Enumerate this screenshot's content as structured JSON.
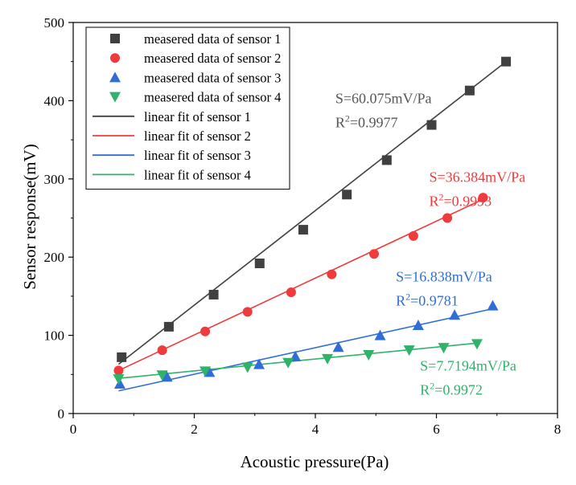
{
  "chart_data": {
    "type": "scatter",
    "title": "",
    "xlabel": "Acoustic pressure(Pa)",
    "ylabel": "Sensor response(mV)",
    "xlim": [
      0,
      8
    ],
    "ylim": [
      0,
      500
    ],
    "xticks": [
      0,
      2,
      4,
      6,
      8
    ],
    "yticks": [
      0,
      100,
      200,
      300,
      400,
      500
    ],
    "grid": false,
    "legend_position": "top-left",
    "series": [
      {
        "name": "measered data of sensor 1",
        "marker": "square",
        "color": "#404040",
        "x": [
          0.8,
          1.58,
          2.32,
          3.08,
          3.8,
          4.52,
          5.18,
          5.92,
          6.55,
          7.15
        ],
        "y": [
          72,
          111,
          152,
          192,
          235,
          280,
          324,
          369,
          413,
          450
        ]
      },
      {
        "name": "measered data of sensor 2",
        "marker": "circle",
        "color": "#ef3b3b",
        "x": [
          0.75,
          1.47,
          2.18,
          2.88,
          3.6,
          4.27,
          4.97,
          5.62,
          6.18,
          6.77
        ],
        "y": [
          55,
          81,
          105,
          130,
          155,
          178,
          204,
          227,
          250,
          276
        ]
      },
      {
        "name": "measered data of sensor 3",
        "marker": "triangle-up",
        "color": "#2f6ed8",
        "x": [
          0.77,
          1.55,
          2.25,
          3.07,
          3.67,
          4.38,
          5.07,
          5.7,
          6.3,
          6.93
        ],
        "y": [
          38,
          47,
          53,
          63,
          73,
          85,
          100,
          113,
          126,
          138
        ]
      },
      {
        "name": "measered data of sensor 4",
        "marker": "triangle-down",
        "color": "#2fb36b",
        "x": [
          0.75,
          1.47,
          2.18,
          2.88,
          3.55,
          4.2,
          4.88,
          5.55,
          6.12,
          6.67
        ],
        "y": [
          44,
          49,
          54,
          59,
          65,
          70,
          75,
          81,
          84,
          89
        ]
      },
      {
        "name": "linear fit of sensor 1",
        "type": "line",
        "color": "#404040",
        "x": [
          0.75,
          7.15
        ],
        "y": [
          63,
          450
        ]
      },
      {
        "name": "linear fit of sensor 2",
        "type": "line",
        "color": "#ef3b3b",
        "x": [
          0.75,
          6.77
        ],
        "y": [
          55,
          274
        ]
      },
      {
        "name": "linear fit of sensor 3",
        "type": "line",
        "color": "#2f6ed8",
        "x": [
          0.75,
          6.93
        ],
        "y": [
          29,
          134
        ]
      },
      {
        "name": "linear fit of sensor 4",
        "type": "line",
        "color": "#2fb36b",
        "x": [
          0.75,
          6.67
        ],
        "y": [
          45,
          90
        ]
      }
    ],
    "annotations": [
      {
        "slope": "S=60.075mV/Pa",
        "r2_prefix": "R",
        "r2_sup": "2",
        "r2_value": "=0.9977",
        "color": "#555555",
        "x": 4.33,
        "y": 397
      },
      {
        "slope": "S=36.384mV/Pa",
        "r2_prefix": "R",
        "r2_sup": "2",
        "r2_value": "=0.9993",
        "color": "#ef3b3b",
        "x": 5.88,
        "y": 296
      },
      {
        "slope": "S=16.838mV/Pa",
        "r2_prefix": "R",
        "r2_sup": "2",
        "r2_value": "=0.9781",
        "color": "#2f6ed8",
        "x": 5.33,
        "y": 169
      },
      {
        "slope": "S=7.7194mV/Pa",
        "r2_prefix": "R",
        "r2_sup": "2",
        "r2_value": "=0.9972",
        "color": "#2fb36b",
        "x": 5.73,
        "y": 55
      }
    ]
  }
}
